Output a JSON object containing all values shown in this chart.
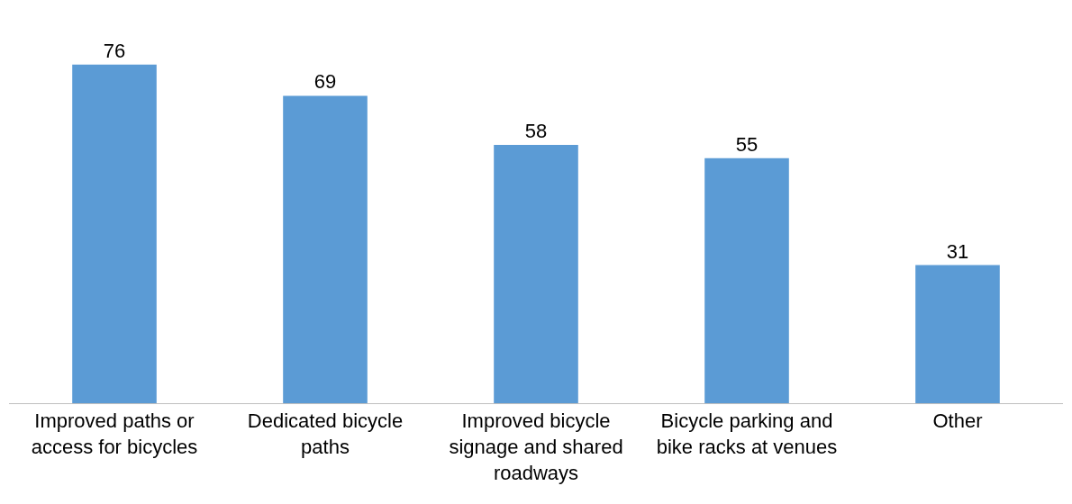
{
  "chart_data": {
    "type": "bar",
    "categories": [
      "Improved paths or access for bicycles",
      "Dedicated bicycle paths",
      "Improved bicycle signage and shared roadways",
      "Bicycle parking and bike racks at venues",
      "Other"
    ],
    "values": [
      76,
      69,
      58,
      55,
      31
    ],
    "color": "#5b9bd5",
    "data_labels": true
  }
}
